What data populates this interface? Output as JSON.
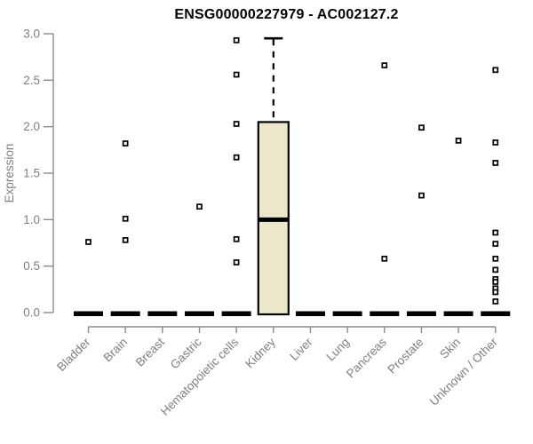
{
  "chart_data": {
    "type": "boxplot",
    "title": "ENSG00000227979 - AC002127.2",
    "xlabel": "",
    "ylabel": "Expression",
    "ylim": [
      0,
      3.0
    ],
    "yticks": [
      0.0,
      0.5,
      1.0,
      1.5,
      2.0,
      2.5,
      3.0
    ],
    "grid": false,
    "legend": "none",
    "x_label_rotation_deg": 45,
    "categories": [
      "Bladder",
      "Brain",
      "Breast",
      "Gastric",
      "Hematopoietic cells",
      "Kidney",
      "Liver",
      "Lung",
      "Pancreas",
      "Prostate",
      "Skin",
      "Unknown / Other"
    ],
    "boxes": [
      {
        "category": "Bladder",
        "q1": 0,
        "median": 0,
        "q3": 0,
        "whisker_low": 0,
        "whisker_high": 0,
        "outliers": [
          0.76
        ]
      },
      {
        "category": "Brain",
        "q1": 0,
        "median": 0,
        "q3": 0,
        "whisker_low": 0,
        "whisker_high": 0,
        "outliers": [
          1.82,
          1.01,
          0.78
        ]
      },
      {
        "category": "Breast",
        "q1": 0,
        "median": 0,
        "q3": 0,
        "whisker_low": 0,
        "whisker_high": 0,
        "outliers": []
      },
      {
        "category": "Gastric",
        "q1": 0,
        "median": 0,
        "q3": 0,
        "whisker_low": 0,
        "whisker_high": 0,
        "outliers": [
          1.14
        ]
      },
      {
        "category": "Hematopoietic cells",
        "q1": 0,
        "median": 0,
        "q3": 0,
        "whisker_low": 0,
        "whisker_high": 0,
        "outliers": [
          2.93,
          2.56,
          2.03,
          1.67,
          0.79,
          0.54
        ]
      },
      {
        "category": "Kidney",
        "q1": 0,
        "median": 1.0,
        "q3": 2.05,
        "whisker_low": 0,
        "whisker_high": 2.95,
        "outliers": []
      },
      {
        "category": "Liver",
        "q1": 0,
        "median": 0,
        "q3": 0,
        "whisker_low": 0,
        "whisker_high": 0,
        "outliers": []
      },
      {
        "category": "Lung",
        "q1": 0,
        "median": 0,
        "q3": 0,
        "whisker_low": 0,
        "whisker_high": 0,
        "outliers": []
      },
      {
        "category": "Pancreas",
        "q1": 0,
        "median": 0,
        "q3": 0,
        "whisker_low": 0,
        "whisker_high": 0,
        "outliers": [
          2.66,
          0.58
        ]
      },
      {
        "category": "Prostate",
        "q1": 0,
        "median": 0,
        "q3": 0,
        "whisker_low": 0,
        "whisker_high": 0,
        "outliers": [
          1.99,
          1.26
        ]
      },
      {
        "category": "Skin",
        "q1": 0,
        "median": 0,
        "q3": 0,
        "whisker_low": 0,
        "whisker_high": 0,
        "outliers": [
          1.85
        ]
      },
      {
        "category": "Unknown / Other",
        "q1": 0,
        "median": 0,
        "q3": 0,
        "whisker_low": 0,
        "whisker_high": 0,
        "outliers": [
          2.61,
          1.83,
          1.61,
          0.86,
          0.74,
          0.58,
          0.46,
          0.36,
          0.33,
          0.26,
          0.22,
          0.12
        ]
      }
    ],
    "colors": {
      "box_fill": "#ECE7CB",
      "box_border": "#000000",
      "median": "#000000",
      "whisker": "#000000",
      "outlier": "#000000",
      "axis": "#8B8B8B",
      "tick_label": "#7F7F7F",
      "title": "#000000",
      "background": "#FFFFFF"
    }
  }
}
